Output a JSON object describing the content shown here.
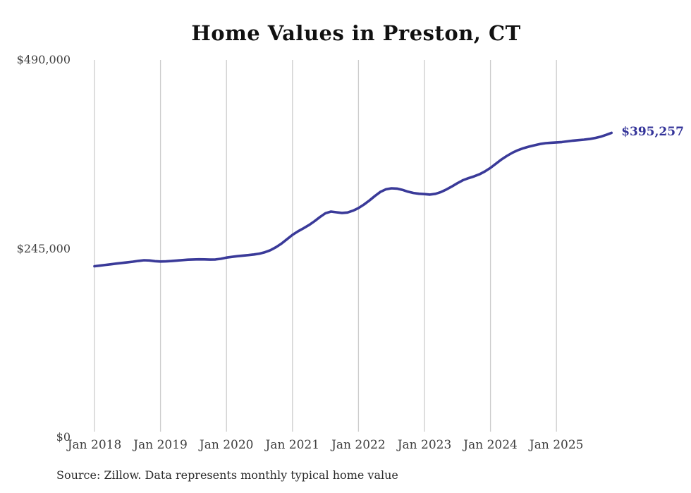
{
  "title": "Home Values in Preston, CT",
  "end_label": "$395,257",
  "source_note": "Source: Zillow. Data represents monthly typical home value",
  "colors": {
    "line": "#3a3a99",
    "end_label": "#333399",
    "grid": "#cccccc",
    "title": "#111111",
    "axis_text": "#3f3f3f",
    "source_text": "#2b2b2b",
    "background": "#ffffff"
  },
  "chart_data": {
    "type": "line",
    "title": "Home Values in Preston, CT",
    "xlabel": "",
    "ylabel": "",
    "x_start_month": "2018-01",
    "x_end_month": "2025-11",
    "months_per_point": 1,
    "x_tick_labels": [
      "Jan 2018",
      "Jan 2019",
      "Jan 2020",
      "Jan 2021",
      "Jan 2022",
      "Jan 2023",
      "Jan 2024",
      "Jan 2025"
    ],
    "x_tick_indices": [
      0,
      12,
      24,
      36,
      48,
      60,
      72,
      84
    ],
    "y_ticks": [
      {
        "label": "$0",
        "value": 0
      },
      {
        "label": "$245,000",
        "value": 245000
      },
      {
        "label": "$490,000",
        "value": 490000
      }
    ],
    "ylim": [
      0,
      490000
    ],
    "grid": "vertical-only",
    "legend": "none",
    "end_value": 395257,
    "series": [
      {
        "name": "Monthly typical home value",
        "values": [
          222100,
          222900,
          223800,
          224700,
          225600,
          226400,
          227200,
          228100,
          229100,
          229900,
          229600,
          228700,
          228200,
          228400,
          228900,
          229500,
          230100,
          230600,
          230900,
          231100,
          231000,
          230700,
          230900,
          231800,
          233400,
          234300,
          235200,
          235900,
          236600,
          237400,
          238500,
          240300,
          243000,
          246800,
          251500,
          257200,
          262900,
          267400,
          271400,
          275600,
          280500,
          286000,
          291000,
          293100,
          292200,
          291300,
          291900,
          294300,
          297700,
          302200,
          307600,
          313400,
          318700,
          322000,
          323300,
          322900,
          321300,
          318900,
          317300,
          316300,
          315800,
          315200,
          316200,
          318500,
          321800,
          325800,
          330000,
          333800,
          336500,
          338800,
          341500,
          345300,
          349900,
          355300,
          360800,
          365400,
          369600,
          372900,
          375400,
          377400,
          379200,
          380800,
          381900,
          382500,
          382900,
          383400,
          384300,
          385200,
          385900,
          386500,
          387300,
          388600,
          390300,
          392600,
          395257
        ]
      }
    ]
  }
}
